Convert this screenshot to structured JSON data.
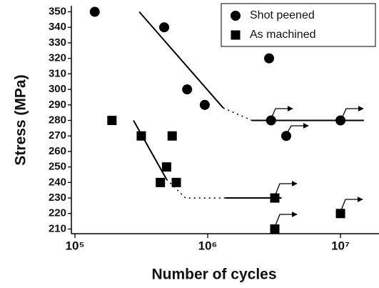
{
  "chart_data": {
    "type": "scatter",
    "xlabel": "Number of cycles",
    "ylabel": "Stress (MPa)",
    "xscale": "log",
    "xlim": [
      94000,
      19500000
    ],
    "ylim": [
      207,
      353
    ],
    "xticks": [
      {
        "value": 100000,
        "label": "10⁵"
      },
      {
        "value": 1000000,
        "label": "10⁶"
      },
      {
        "value": 10000000,
        "label": "10⁷"
      }
    ],
    "yticks": [
      210,
      220,
      230,
      240,
      250,
      260,
      270,
      280,
      290,
      300,
      310,
      320,
      330,
      340,
      350
    ],
    "legend": "upper right",
    "series": [
      {
        "name": "Shot peened",
        "color": "#000000",
        "marker": "circle",
        "x": [
          141000,
          470000,
          700000,
          950000,
          2900000,
          3000000,
          3900000,
          10000000
        ],
        "values": [
          350,
          340,
          300,
          290,
          320,
          280,
          270,
          280
        ]
      },
      {
        "name": "As machined",
        "color": "#000000",
        "marker": "square",
        "x": [
          190000,
          316000,
          540000,
          490000,
          440000,
          580000,
          3200000,
          3200000,
          10000000
        ],
        "values": [
          280,
          270,
          270,
          250,
          240,
          240,
          230,
          210,
          220
        ]
      }
    ],
    "fit_lines": [
      {
        "x": [
          305000,
          1310000
        ],
        "values": [
          350,
          288
        ],
        "dash": false
      },
      {
        "x": [
          1310000,
          2150000
        ],
        "values": [
          288,
          280
        ],
        "dash": true
      },
      {
        "x": [
          2150000,
          15000000
        ],
        "values": [
          280,
          280
        ],
        "dash": false
      },
      {
        "x": [
          276000,
          490000
        ],
        "values": [
          280,
          242
        ],
        "dash": false
      },
      {
        "x": [
          490000,
          680000,
          1360000
        ],
        "values": [
          242,
          230,
          230
        ],
        "dash": true
      },
      {
        "x": [
          1360000,
          3600000
        ],
        "values": [
          230,
          230
        ],
        "dash": false
      }
    ]
  }
}
